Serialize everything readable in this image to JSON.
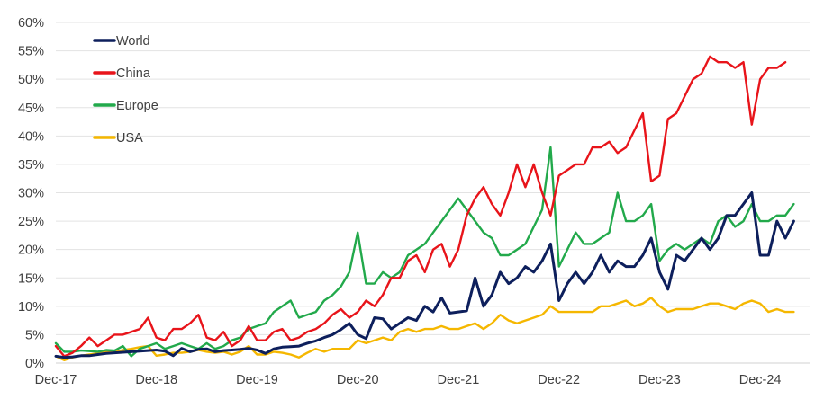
{
  "chart_data": {
    "type": "line",
    "title": "",
    "xlabel": "",
    "ylabel": "",
    "x_tick_labels": [
      "Dec-17",
      "Dec-18",
      "Dec-19",
      "Dec-20",
      "Dec-21",
      "Dec-22",
      "Dec-23",
      "Dec-24"
    ],
    "x_tick_months": [
      0,
      12,
      24,
      36,
      48,
      60,
      72,
      84
    ],
    "x_month_range": [
      0,
      90
    ],
    "y_tick_labels": [
      "0%",
      "5%",
      "10%",
      "15%",
      "20%",
      "25%",
      "30%",
      "35%",
      "40%",
      "45%",
      "50%",
      "55%",
      "60%"
    ],
    "ylim": [
      0,
      60
    ],
    "y_unit": "%",
    "grid": true,
    "legend_position": "top-left",
    "series": [
      {
        "name": "World",
        "color": "#0d1f5c",
        "values": [
          1.2,
          1.0,
          1.1,
          1.3,
          1.3,
          1.5,
          1.7,
          1.8,
          1.9,
          2.0,
          2.1,
          2.2,
          2.3,
          2.1,
          1.3,
          2.6,
          2.0,
          2.4,
          2.5,
          2.0,
          2.2,
          2.3,
          2.4,
          2.6,
          2.3,
          1.7,
          2.5,
          2.8,
          2.9,
          3.0,
          3.5,
          3.9,
          4.5,
          5.0,
          5.9,
          7.0,
          5.0,
          4.3,
          8.0,
          7.8,
          6.0,
          7.0,
          8.0,
          7.5,
          10.0,
          9.0,
          11.5,
          8.8,
          9.0,
          9.2,
          15.0,
          10.0,
          12.0,
          16.0,
          14.0,
          15.0,
          17.0,
          16.0,
          18.0,
          21.0,
          11.0,
          14.0,
          16.0,
          14.0,
          16.0,
          19.0,
          16.0,
          18.0,
          17.0,
          17.0,
          19.0,
          22.0,
          16.0,
          13.0,
          19.0,
          18.0,
          20.0,
          22.0,
          20.0,
          22.0,
          26.0,
          26.0,
          28.0,
          30.0,
          19.0,
          19.0,
          25.0,
          22.0,
          25.0
        ]
      },
      {
        "name": "China",
        "color": "#e8141a",
        "values": [
          3.0,
          1.2,
          1.8,
          3.0,
          4.5,
          3.0,
          4.0,
          5.0,
          5.0,
          5.5,
          6.0,
          8.0,
          4.5,
          4.0,
          6.0,
          6.0,
          7.0,
          8.5,
          4.5,
          4.0,
          5.5,
          3.0,
          4.0,
          6.5,
          4.0,
          4.0,
          5.5,
          6.0,
          4.0,
          4.5,
          5.5,
          6.0,
          7.0,
          8.5,
          9.5,
          8.0,
          9.0,
          11.0,
          10.0,
          12.0,
          15.0,
          15.0,
          18.0,
          19.0,
          16.0,
          20.0,
          21.0,
          17.0,
          20.0,
          26.0,
          29.0,
          31.0,
          28.0,
          26.0,
          30.0,
          35.0,
          31.0,
          35.0,
          30.0,
          26.0,
          33.0,
          34.0,
          35.0,
          35.0,
          38.0,
          38.0,
          39.0,
          37.0,
          38.0,
          41.0,
          44.0,
          32.0,
          33.0,
          43.0,
          44.0,
          47.0,
          50.0,
          51.0,
          54.0,
          53.0,
          53.0,
          52.0,
          53.0,
          42.0,
          50.0,
          52.0,
          52.0,
          53.0
        ]
      },
      {
        "name": "Europe",
        "color": "#22a94b",
        "values": [
          3.5,
          2.0,
          2.0,
          2.2,
          2.1,
          2.0,
          2.3,
          2.2,
          3.0,
          1.2,
          2.5,
          3.0,
          3.5,
          2.5,
          3.0,
          3.5,
          3.0,
          2.5,
          3.5,
          2.5,
          3.0,
          4.0,
          4.5,
          6.0,
          6.5,
          7.0,
          9.0,
          10.0,
          11.0,
          8.0,
          8.5,
          9.0,
          11.0,
          12.0,
          13.5,
          16.0,
          23.0,
          14.0,
          14.0,
          16.0,
          15.0,
          16.0,
          19.0,
          20.0,
          21.0,
          23.0,
          25.0,
          27.0,
          29.0,
          27.0,
          25.0,
          23.0,
          22.0,
          19.0,
          19.0,
          20.0,
          21.0,
          24.0,
          27.0,
          38.0,
          17.0,
          20.0,
          23.0,
          21.0,
          21.0,
          22.0,
          23.0,
          30.0,
          25.0,
          25.0,
          26.0,
          28.0,
          18.0,
          20.0,
          21.0,
          20.0,
          21.0,
          22.0,
          21.0,
          25.0,
          26.0,
          24.0,
          25.0,
          28.0,
          25.0,
          25.0,
          26.0,
          26.0,
          28.0
        ]
      },
      {
        "name": "USA",
        "color": "#f5b700",
        "values": [
          1.2,
          0.5,
          1.0,
          1.3,
          1.5,
          1.7,
          2.0,
          2.0,
          2.3,
          2.5,
          2.8,
          3.0,
          1.3,
          1.5,
          1.8,
          1.8,
          2.0,
          2.3,
          2.0,
          1.8,
          2.0,
          1.5,
          2.0,
          3.0,
          1.5,
          1.5,
          2.0,
          1.8,
          1.5,
          1.0,
          1.8,
          2.5,
          2.0,
          2.5,
          2.5,
          2.5,
          4.0,
          3.5,
          4.0,
          4.5,
          4.0,
          5.5,
          6.0,
          5.5,
          6.0,
          6.0,
          6.5,
          6.0,
          6.0,
          6.5,
          7.0,
          6.0,
          7.0,
          8.5,
          7.5,
          7.0,
          7.5,
          8.0,
          8.5,
          10.0,
          9.0,
          9.0,
          9.0,
          9.0,
          9.0,
          10.0,
          10.0,
          10.5,
          11.0,
          10.0,
          10.5,
          11.5,
          10.0,
          9.0,
          9.5,
          9.5,
          9.5,
          10.0,
          10.5,
          10.5,
          10.0,
          9.5,
          10.5,
          11.0,
          10.5,
          9.0,
          9.5,
          9.0,
          9.0
        ]
      }
    ]
  }
}
